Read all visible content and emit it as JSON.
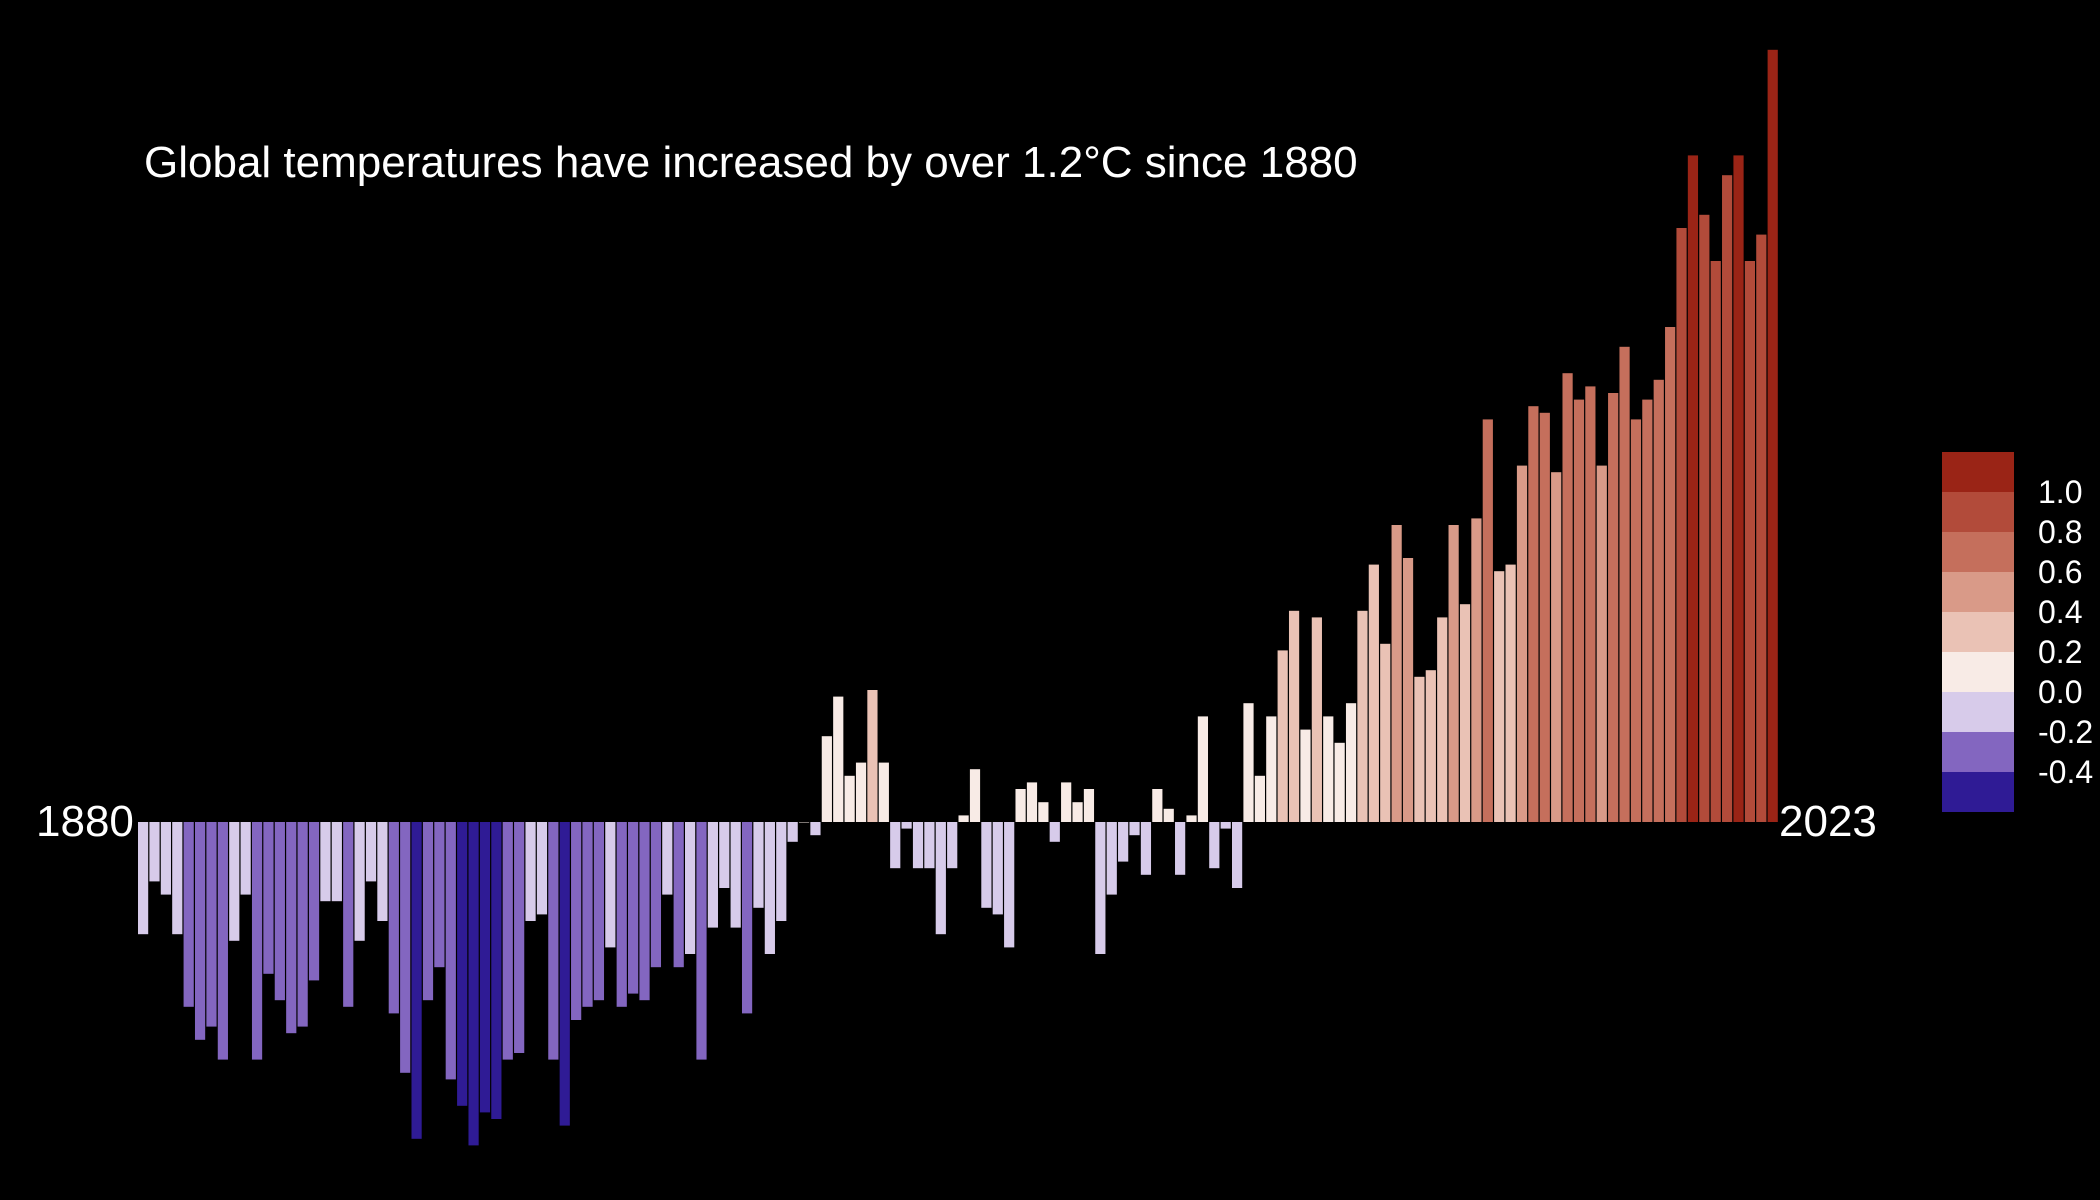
{
  "chart_data": {
    "type": "bar",
    "title": "Global temperatures have increased by over 1.2°C since 1880",
    "xlabel": "",
    "ylabel": "",
    "x_start_label": "1880",
    "x_end_label": "2023",
    "x": [
      1880,
      1881,
      1882,
      1883,
      1884,
      1885,
      1886,
      1887,
      1888,
      1889,
      1890,
      1891,
      1892,
      1893,
      1894,
      1895,
      1896,
      1897,
      1898,
      1899,
      1900,
      1901,
      1902,
      1903,
      1904,
      1905,
      1906,
      1907,
      1908,
      1909,
      1910,
      1911,
      1912,
      1913,
      1914,
      1915,
      1916,
      1917,
      1918,
      1919,
      1920,
      1921,
      1922,
      1923,
      1924,
      1925,
      1926,
      1927,
      1928,
      1929,
      1930,
      1931,
      1932,
      1933,
      1934,
      1935,
      1936,
      1937,
      1938,
      1939,
      1940,
      1941,
      1942,
      1943,
      1944,
      1945,
      1946,
      1947,
      1948,
      1949,
      1950,
      1951,
      1952,
      1953,
      1954,
      1955,
      1956,
      1957,
      1958,
      1959,
      1960,
      1961,
      1962,
      1963,
      1964,
      1965,
      1966,
      1967,
      1968,
      1969,
      1970,
      1971,
      1972,
      1973,
      1974,
      1975,
      1976,
      1977,
      1978,
      1979,
      1980,
      1981,
      1982,
      1983,
      1984,
      1985,
      1986,
      1987,
      1988,
      1989,
      1990,
      1991,
      1992,
      1993,
      1994,
      1995,
      1996,
      1997,
      1998,
      1999,
      2000,
      2001,
      2002,
      2003,
      2004,
      2005,
      2006,
      2007,
      2008,
      2009,
      2010,
      2011,
      2012,
      2013,
      2014,
      2015,
      2016,
      2017,
      2018,
      2019,
      2020,
      2021,
      2022,
      2023
    ],
    "values": [
      -0.17,
      -0.09,
      -0.11,
      -0.17,
      -0.28,
      -0.33,
      -0.31,
      -0.36,
      -0.18,
      -0.11,
      -0.36,
      -0.23,
      -0.27,
      -0.32,
      -0.31,
      -0.24,
      -0.12,
      -0.12,
      -0.28,
      -0.18,
      -0.09,
      -0.15,
      -0.29,
      -0.38,
      -0.48,
      -0.27,
      -0.22,
      -0.39,
      -0.43,
      -0.49,
      -0.44,
      -0.45,
      -0.36,
      -0.35,
      -0.15,
      -0.14,
      -0.36,
      -0.46,
      -0.3,
      -0.28,
      -0.27,
      -0.19,
      -0.28,
      -0.26,
      -0.27,
      -0.22,
      -0.11,
      -0.22,
      -0.2,
      -0.36,
      -0.16,
      -0.1,
      -0.16,
      -0.29,
      -0.13,
      -0.2,
      -0.15,
      -0.03,
      -0.0,
      -0.02,
      0.13,
      0.19,
      0.07,
      0.09,
      0.2,
      0.09,
      -0.07,
      -0.01,
      -0.07,
      -0.07,
      -0.17,
      -0.07,
      0.01,
      0.08,
      -0.13,
      -0.14,
      -0.19,
      0.05,
      0.06,
      0.03,
      -0.03,
      0.06,
      0.03,
      0.05,
      -0.2,
      -0.11,
      -0.06,
      -0.02,
      -0.08,
      0.05,
      0.02,
      -0.08,
      0.01,
      0.16,
      -0.07,
      -0.01,
      -0.1,
      0.18,
      0.07,
      0.16,
      0.26,
      0.32,
      0.14,
      0.31,
      0.16,
      0.12,
      0.18,
      0.32,
      0.39,
      0.27,
      0.45,
      0.4,
      0.22,
      0.23,
      0.31,
      0.45,
      0.33,
      0.46,
      0.61,
      0.38,
      0.39,
      0.54,
      0.63,
      0.62,
      0.53,
      0.68,
      0.64,
      0.66,
      0.54,
      0.65,
      0.72,
      0.61,
      0.64,
      0.67,
      0.75,
      0.9,
      1.01,
      0.92,
      0.85,
      0.98,
      1.01,
      0.85,
      0.89,
      1.17
    ],
    "ylim": [
      -0.5,
      1.2
    ],
    "colorbar": {
      "bins": [
        {
          "min": 1.0,
          "max": 1.2,
          "color": "#9a2416"
        },
        {
          "min": 0.8,
          "max": 1.0,
          "color": "#b24b3a"
        },
        {
          "min": 0.6,
          "max": 0.8,
          "color": "#c56f5c"
        },
        {
          "min": 0.4,
          "max": 0.6,
          "color": "#d99a88"
        },
        {
          "min": 0.2,
          "max": 0.4,
          "color": "#eac2b5"
        },
        {
          "min": 0.0,
          "max": 0.2,
          "color": "#f8ebe6"
        },
        {
          "min": -0.2,
          "max": 0.0,
          "color": "#d7cbea"
        },
        {
          "min": -0.4,
          "max": -0.2,
          "color": "#8366c0"
        },
        {
          "min": -0.6,
          "max": -0.4,
          "color": "#2f1b95"
        }
      ],
      "tick_labels": [
        "1.0",
        "0.8",
        "0.6",
        "0.4",
        "0.2",
        "0.0",
        "-0.2",
        "-0.4"
      ]
    },
    "background": "#000000",
    "text_color": "#ffffff",
    "grid": false,
    "legend_position": "right"
  }
}
